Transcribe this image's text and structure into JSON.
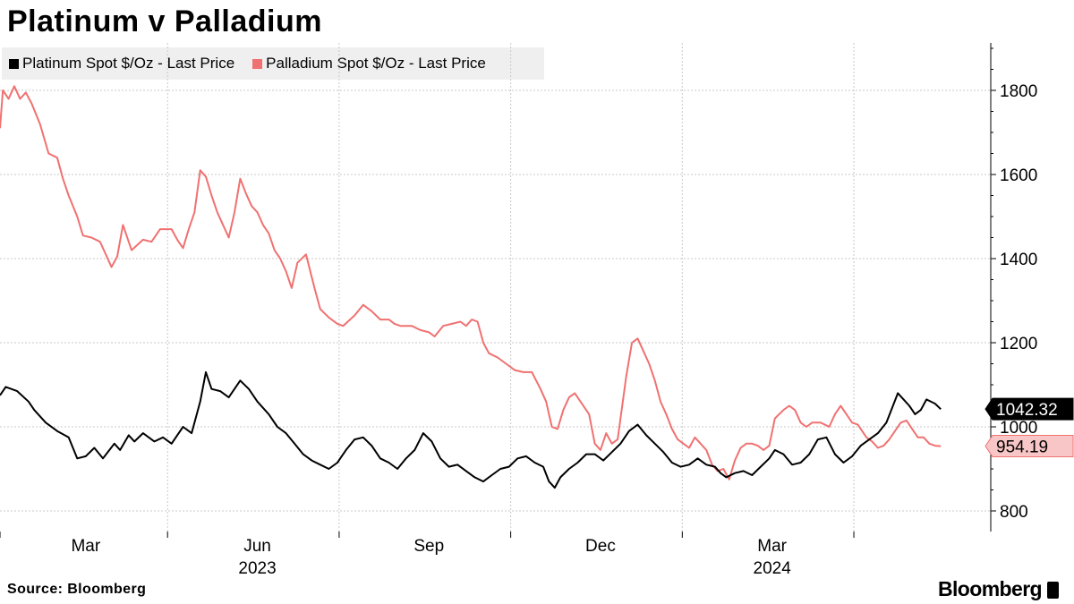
{
  "title": "Platinum v Palladium",
  "source": "Source: Bloomberg",
  "brand": "Bloomberg",
  "colors": {
    "platinum": "#000000",
    "palladium": "#f07171",
    "grid": "#c8c8c8",
    "legend_bg": "#efefef"
  },
  "chart_data": {
    "type": "line",
    "title": "Platinum v Palladium",
    "xlabel": "",
    "ylabel": "",
    "ylim": [
      760,
      1900
    ],
    "y_ticks": [
      800,
      1000,
      1200,
      1400,
      1600,
      1800
    ],
    "y_tick_labels": [
      "800",
      "1000",
      "1200",
      "1400",
      "1600",
      "1800"
    ],
    "x_range_months": [
      0,
      17.85
    ],
    "x_ticks": [
      {
        "label": "Mar",
        "month": 1.5
      },
      {
        "label": "Jun",
        "month": 4.5
      },
      {
        "label": "Sep",
        "month": 7.5
      },
      {
        "label": "Dec",
        "month": 10.5
      },
      {
        "label": "Mar",
        "month": 13.5
      }
    ],
    "year_labels": [
      {
        "label": "2023",
        "month": 4.5
      },
      {
        "label": "2024",
        "month": 13.5
      }
    ],
    "grid_lines_months": [
      0,
      2.93,
      5.93,
      8.93,
      11.93,
      14.93
    ],
    "legend_position": "top-left",
    "series": [
      {
        "name": "Platinum Spot $/Oz - Last Price",
        "color": "#000000",
        "last_value": "1042.32",
        "points": [
          [
            0,
            1075
          ],
          [
            0.1,
            1095
          ],
          [
            0.3,
            1085
          ],
          [
            0.5,
            1060
          ],
          [
            0.6,
            1040
          ],
          [
            0.8,
            1010
          ],
          [
            1.0,
            990
          ],
          [
            1.2,
            975
          ],
          [
            1.35,
            925
          ],
          [
            1.5,
            930
          ],
          [
            1.65,
            950
          ],
          [
            1.8,
            925
          ],
          [
            2.0,
            960
          ],
          [
            2.1,
            945
          ],
          [
            2.25,
            980
          ],
          [
            2.35,
            965
          ],
          [
            2.5,
            985
          ],
          [
            2.7,
            965
          ],
          [
            2.85,
            975
          ],
          [
            3.0,
            960
          ],
          [
            3.2,
            1000
          ],
          [
            3.35,
            985
          ],
          [
            3.5,
            1060
          ],
          [
            3.6,
            1130
          ],
          [
            3.7,
            1090
          ],
          [
            3.85,
            1085
          ],
          [
            4.0,
            1070
          ],
          [
            4.2,
            1110
          ],
          [
            4.35,
            1090
          ],
          [
            4.5,
            1060
          ],
          [
            4.7,
            1030
          ],
          [
            4.85,
            1000
          ],
          [
            5.0,
            985
          ],
          [
            5.15,
            960
          ],
          [
            5.3,
            935
          ],
          [
            5.45,
            920
          ],
          [
            5.6,
            910
          ],
          [
            5.75,
            900
          ],
          [
            5.9,
            915
          ],
          [
            6.05,
            945
          ],
          [
            6.2,
            970
          ],
          [
            6.35,
            975
          ],
          [
            6.5,
            955
          ],
          [
            6.65,
            925
          ],
          [
            6.8,
            915
          ],
          [
            6.95,
            900
          ],
          [
            7.1,
            925
          ],
          [
            7.25,
            945
          ],
          [
            7.4,
            985
          ],
          [
            7.55,
            965
          ],
          [
            7.7,
            925
          ],
          [
            7.85,
            905
          ],
          [
            8.0,
            910
          ],
          [
            8.15,
            895
          ],
          [
            8.3,
            880
          ],
          [
            8.45,
            870
          ],
          [
            8.6,
            885
          ],
          [
            8.75,
            900
          ],
          [
            8.9,
            905
          ],
          [
            9.05,
            925
          ],
          [
            9.2,
            930
          ],
          [
            9.35,
            915
          ],
          [
            9.5,
            905
          ],
          [
            9.6,
            870
          ],
          [
            9.7,
            855
          ],
          [
            9.8,
            880
          ],
          [
            9.95,
            900
          ],
          [
            10.1,
            915
          ],
          [
            10.25,
            935
          ],
          [
            10.4,
            935
          ],
          [
            10.55,
            920
          ],
          [
            10.7,
            940
          ],
          [
            10.85,
            960
          ],
          [
            11.0,
            990
          ],
          [
            11.15,
            1005
          ],
          [
            11.3,
            980
          ],
          [
            11.45,
            960
          ],
          [
            11.6,
            940
          ],
          [
            11.75,
            915
          ],
          [
            11.9,
            905
          ],
          [
            12.05,
            910
          ],
          [
            12.2,
            925
          ],
          [
            12.35,
            910
          ],
          [
            12.5,
            905
          ],
          [
            12.6,
            890
          ],
          [
            12.7,
            880
          ],
          [
            12.85,
            890
          ],
          [
            13.0,
            895
          ],
          [
            13.15,
            885
          ],
          [
            13.3,
            905
          ],
          [
            13.45,
            925
          ],
          [
            13.55,
            945
          ],
          [
            13.7,
            935
          ],
          [
            13.85,
            910
          ],
          [
            14.0,
            915
          ],
          [
            14.15,
            935
          ],
          [
            14.3,
            970
          ],
          [
            14.45,
            975
          ],
          [
            14.6,
            935
          ],
          [
            14.75,
            915
          ],
          [
            14.9,
            930
          ],
          [
            15.05,
            955
          ],
          [
            15.2,
            970
          ],
          [
            15.35,
            985
          ],
          [
            15.5,
            1010
          ],
          [
            15.6,
            1045
          ],
          [
            15.7,
            1080
          ],
          [
            15.8,
            1065
          ],
          [
            15.9,
            1050
          ],
          [
            16.0,
            1030
          ],
          [
            16.1,
            1040
          ],
          [
            16.2,
            1065
          ],
          [
            16.35,
            1055
          ],
          [
            16.45,
            1042
          ]
        ]
      },
      {
        "name": "Palladium Spot $/Oz - Last Price",
        "color": "#f07171",
        "last_value": "954.19",
        "points": [
          [
            0,
            1710
          ],
          [
            0.05,
            1800
          ],
          [
            0.15,
            1780
          ],
          [
            0.25,
            1810
          ],
          [
            0.35,
            1780
          ],
          [
            0.45,
            1795
          ],
          [
            0.55,
            1770
          ],
          [
            0.7,
            1720
          ],
          [
            0.85,
            1650
          ],
          [
            1.0,
            1640
          ],
          [
            1.1,
            1590
          ],
          [
            1.2,
            1550
          ],
          [
            1.35,
            1500
          ],
          [
            1.45,
            1455
          ],
          [
            1.6,
            1450
          ],
          [
            1.75,
            1440
          ],
          [
            1.85,
            1410
          ],
          [
            1.95,
            1380
          ],
          [
            2.05,
            1405
          ],
          [
            2.15,
            1480
          ],
          [
            2.3,
            1420
          ],
          [
            2.5,
            1445
          ],
          [
            2.65,
            1440
          ],
          [
            2.8,
            1470
          ],
          [
            3.0,
            1470
          ],
          [
            3.1,
            1445
          ],
          [
            3.2,
            1425
          ],
          [
            3.3,
            1470
          ],
          [
            3.4,
            1510
          ],
          [
            3.5,
            1610
          ],
          [
            3.6,
            1595
          ],
          [
            3.7,
            1550
          ],
          [
            3.8,
            1510
          ],
          [
            3.9,
            1480
          ],
          [
            4.0,
            1450
          ],
          [
            4.1,
            1510
          ],
          [
            4.2,
            1590
          ],
          [
            4.3,
            1555
          ],
          [
            4.4,
            1525
          ],
          [
            4.5,
            1510
          ],
          [
            4.6,
            1480
          ],
          [
            4.7,
            1460
          ],
          [
            4.8,
            1420
          ],
          [
            4.9,
            1400
          ],
          [
            5.0,
            1370
          ],
          [
            5.1,
            1330
          ],
          [
            5.2,
            1390
          ],
          [
            5.35,
            1410
          ],
          [
            5.5,
            1330
          ],
          [
            5.6,
            1280
          ],
          [
            5.75,
            1260
          ],
          [
            5.9,
            1245
          ],
          [
            6.0,
            1240
          ],
          [
            6.2,
            1265
          ],
          [
            6.35,
            1290
          ],
          [
            6.5,
            1275
          ],
          [
            6.65,
            1255
          ],
          [
            6.8,
            1255
          ],
          [
            6.9,
            1245
          ],
          [
            7.0,
            1240
          ],
          [
            7.2,
            1240
          ],
          [
            7.35,
            1230
          ],
          [
            7.5,
            1225
          ],
          [
            7.6,
            1215
          ],
          [
            7.75,
            1240
          ],
          [
            7.9,
            1245
          ],
          [
            8.05,
            1250
          ],
          [
            8.15,
            1240
          ],
          [
            8.25,
            1255
          ],
          [
            8.35,
            1250
          ],
          [
            8.45,
            1200
          ],
          [
            8.55,
            1175
          ],
          [
            8.7,
            1165
          ],
          [
            8.85,
            1150
          ],
          [
            9.0,
            1135
          ],
          [
            9.15,
            1130
          ],
          [
            9.3,
            1130
          ],
          [
            9.45,
            1090
          ],
          [
            9.55,
            1060
          ],
          [
            9.65,
            1000
          ],
          [
            9.75,
            995
          ],
          [
            9.85,
            1040
          ],
          [
            9.95,
            1070
          ],
          [
            10.05,
            1080
          ],
          [
            10.15,
            1060
          ],
          [
            10.3,
            1030
          ],
          [
            10.4,
            960
          ],
          [
            10.5,
            945
          ],
          [
            10.6,
            985
          ],
          [
            10.7,
            960
          ],
          [
            10.8,
            970
          ],
          [
            10.95,
            1120
          ],
          [
            11.05,
            1200
          ],
          [
            11.15,
            1210
          ],
          [
            11.25,
            1180
          ],
          [
            11.35,
            1150
          ],
          [
            11.45,
            1110
          ],
          [
            11.55,
            1060
          ],
          [
            11.65,
            1030
          ],
          [
            11.75,
            995
          ],
          [
            11.85,
            970
          ],
          [
            11.95,
            960
          ],
          [
            12.05,
            950
          ],
          [
            12.15,
            975
          ],
          [
            12.25,
            960
          ],
          [
            12.35,
            945
          ],
          [
            12.45,
            910
          ],
          [
            12.55,
            895
          ],
          [
            12.65,
            900
          ],
          [
            12.75,
            875
          ],
          [
            12.85,
            920
          ],
          [
            12.95,
            950
          ],
          [
            13.05,
            960
          ],
          [
            13.15,
            960
          ],
          [
            13.25,
            955
          ],
          [
            13.35,
            945
          ],
          [
            13.45,
            955
          ],
          [
            13.55,
            1020
          ],
          [
            13.7,
            1040
          ],
          [
            13.8,
            1050
          ],
          [
            13.9,
            1040
          ],
          [
            14.0,
            1010
          ],
          [
            14.1,
            1000
          ],
          [
            14.2,
            1010
          ],
          [
            14.35,
            1010
          ],
          [
            14.5,
            1000
          ],
          [
            14.6,
            1030
          ],
          [
            14.7,
            1050
          ],
          [
            14.8,
            1030
          ],
          [
            14.9,
            1010
          ],
          [
            15.0,
            1005
          ],
          [
            15.15,
            975
          ],
          [
            15.25,
            965
          ],
          [
            15.35,
            950
          ],
          [
            15.45,
            955
          ],
          [
            15.55,
            970
          ],
          [
            15.65,
            990
          ],
          [
            15.75,
            1010
          ],
          [
            15.85,
            1015
          ],
          [
            15.95,
            995
          ],
          [
            16.05,
            975
          ],
          [
            16.15,
            975
          ],
          [
            16.25,
            960
          ],
          [
            16.35,
            955
          ],
          [
            16.45,
            954
          ]
        ]
      }
    ]
  }
}
